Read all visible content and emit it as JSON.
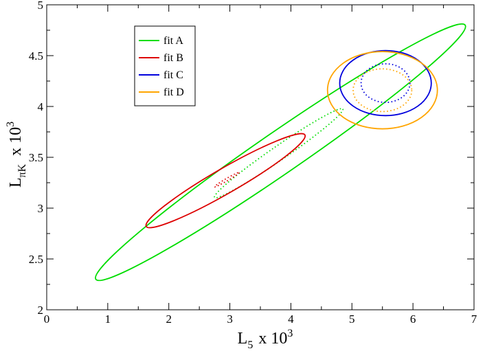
{
  "chart_data": {
    "type": "line",
    "title": "",
    "xlabel": {
      "main": "L",
      "sub": "5",
      "mid": "x 10",
      "sup": "3"
    },
    "ylabel": {
      "main": "L",
      "sub": "πK",
      "mid": "x 10",
      "sup": "3"
    },
    "xlim": [
      0,
      7
    ],
    "ylim": [
      2,
      5
    ],
    "x_major_ticks": [
      0,
      1,
      2,
      3,
      4,
      5,
      6,
      7
    ],
    "x_tick_labels": [
      "0",
      "1",
      "2",
      "3",
      "4",
      "5",
      "6",
      "7"
    ],
    "y_major_ticks": [
      2,
      2.5,
      3,
      3.5,
      4,
      4.5,
      5
    ],
    "y_tick_labels": [
      "2",
      "2.5",
      "3",
      "3.5",
      "4",
      "4.5",
      "5"
    ],
    "grid": false,
    "legend": {
      "placement": "top-left"
    },
    "series": [
      {
        "name": "fit A",
        "color": "#00dd00",
        "solid": {
          "center": [
            3.83,
            3.55
          ],
          "end_a": [
            6.85,
            4.8
          ],
          "end_b": [
            0.8,
            2.3
          ],
          "minor_point": [
            4.6,
            3.62
          ]
        },
        "dotted": {
          "center": [
            3.8,
            3.54
          ],
          "end_a": [
            4.85,
            3.98
          ],
          "end_b": [
            2.75,
            3.11
          ],
          "minor_point": [
            3.86,
            3.48
          ]
        }
      },
      {
        "name": "fit B",
        "color": "#dd0000",
        "solid": {
          "center": [
            2.93,
            3.27
          ],
          "end_a": [
            4.23,
            3.72
          ],
          "end_b": [
            1.63,
            2.82
          ],
          "minor_point": [
            3.05,
            3.17
          ]
        },
        "dotted": {
          "center": [
            2.95,
            3.28
          ],
          "end_a": [
            3.15,
            3.35
          ],
          "end_b": [
            2.75,
            3.21
          ],
          "minor_point": [
            2.96,
            3.27
          ]
        }
      },
      {
        "name": "fit C",
        "color": "#0000dd",
        "solid": {
          "center": [
            5.55,
            4.23
          ],
          "end_a": [
            6.3,
            4.23
          ],
          "end_b": [
            4.8,
            4.23
          ],
          "minor_point": [
            5.55,
            4.55
          ]
        },
        "dotted": {
          "center": [
            5.55,
            4.23
          ],
          "end_a": [
            5.95,
            4.23
          ],
          "end_b": [
            5.15,
            4.23
          ],
          "minor_point": [
            5.55,
            4.42
          ]
        }
      },
      {
        "name": "fit D",
        "color": "#ffa500",
        "solid": {
          "center": [
            5.5,
            4.16
          ],
          "end_a": [
            6.4,
            4.16
          ],
          "end_b": [
            4.6,
            4.16
          ],
          "minor_point": [
            5.5,
            4.54
          ]
        },
        "dotted": {
          "center": [
            5.5,
            4.16
          ],
          "end_a": [
            5.98,
            4.16
          ],
          "end_b": [
            5.02,
            4.16
          ],
          "minor_point": [
            5.5,
            4.37
          ]
        }
      }
    ]
  }
}
